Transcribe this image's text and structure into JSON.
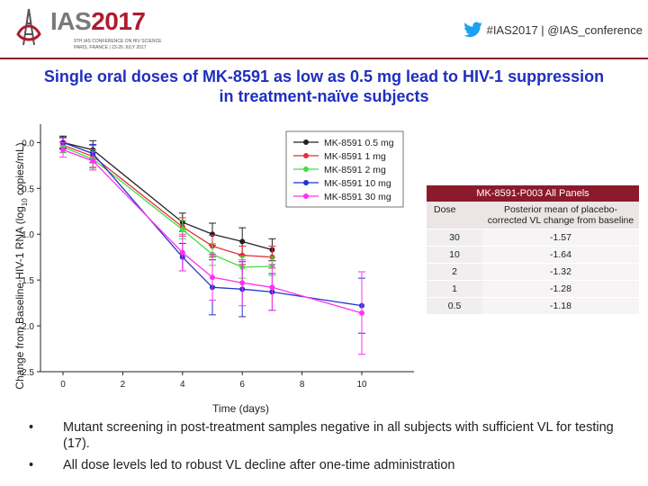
{
  "header": {
    "logo_main": "IAS",
    "logo_year": "2017",
    "logo_line1": "9TH IAS CONFERENCE ON HIV SCIENCE",
    "logo_line2": "PARIS, FRANCE | 23-26 JULY 2017",
    "hashtag": "#IAS2017 | @IAS_conference"
  },
  "slide": {
    "title": "Single oral doses of MK-8591 as low as 0.5 mg lead to HIV-1 suppression in treatment-naïve subjects"
  },
  "chart_data": {
    "type": "line",
    "xlabel": "Time (days)",
    "ylabel_main": "Change from Baseline HIV-1 RNA (log",
    "ylabel_sub": "10",
    "ylabel_end": " copies/mL)",
    "xlim": [
      0,
      10
    ],
    "ylim": [
      -2.5,
      0.2
    ],
    "xticks": [
      0,
      2,
      4,
      6,
      8,
      10
    ],
    "xtick_labels": [
      "0",
      "2",
      "4",
      "6",
      "8",
      "10"
    ],
    "yticks": [
      0,
      -0.5,
      -1,
      -1.5,
      -2,
      -2.5
    ],
    "ytick_labels": [
      "0.0",
      "-0.5",
      "-1.0",
      "-1.5",
      "-2.0",
      "-2.5"
    ],
    "grid": false,
    "legend_position": "top-right",
    "series": [
      {
        "name": "MK-8591 0.5 mg",
        "color": "#222222",
        "x": [
          0,
          1,
          4,
          5,
          6,
          7
        ],
        "y": [
          0.0,
          -0.08,
          -0.87,
          -1.0,
          -1.08,
          -1.17
        ],
        "err": [
          0.07,
          0.1,
          0.1,
          0.12,
          0.15,
          0.12
        ]
      },
      {
        "name": "MK-8591 1 mg",
        "color": "#e0303a",
        "x": [
          0,
          1,
          4,
          5,
          6,
          7
        ],
        "y": [
          -0.03,
          -0.15,
          -0.92,
          -1.13,
          -1.23,
          -1.25
        ],
        "err": [
          0.08,
          0.12,
          0.1,
          0.12,
          0.1,
          0.12
        ]
      },
      {
        "name": "MK-8591 2 mg",
        "color": "#44dd44",
        "x": [
          0,
          1,
          4,
          5,
          6,
          7
        ],
        "y": [
          -0.05,
          -0.18,
          -0.95,
          -1.22,
          -1.36,
          -1.35
        ],
        "err": [
          0.06,
          0.1,
          0.1,
          0.12,
          0.12,
          0.1
        ]
      },
      {
        "name": "MK-8591 10 mg",
        "color": "#2233cc",
        "x": [
          0,
          1,
          4,
          5,
          6,
          7,
          10
        ],
        "y": [
          0.0,
          -0.12,
          -1.25,
          -1.58,
          -1.6,
          -1.63,
          -1.78
        ],
        "err": [
          0.06,
          0.1,
          0.15,
          0.3,
          0.3,
          0.2,
          0.3
        ]
      },
      {
        "name": "MK-8591 30 mg",
        "color": "#ff33ee",
        "x": [
          0,
          1,
          4,
          5,
          6,
          7,
          10
        ],
        "y": [
          -0.08,
          -0.2,
          -1.2,
          -1.47,
          -1.53,
          -1.58,
          -1.86
        ],
        "err": [
          0.08,
          0.1,
          0.2,
          0.25,
          0.25,
          0.25,
          0.45
        ]
      }
    ]
  },
  "table": {
    "caption": "MK-8591-P003 All Panels",
    "headers": [
      "Dose",
      "Posterior mean of placebo-corrected VL change from baseline"
    ],
    "rows": [
      [
        "30",
        "-1.57"
      ],
      [
        "10",
        "-1.64"
      ],
      [
        "2",
        "-1.32"
      ],
      [
        "1",
        "-1.28"
      ],
      [
        "0.5",
        "-1.18"
      ]
    ]
  },
  "bullets": [
    {
      "marker": "•",
      "text": "Mutant screening in post-treatment samples negative in all subjects with sufficient VL for testing (17)."
    },
    {
      "marker": "•",
      "text": "All dose levels led to robust VL decline after one-time administration"
    }
  ],
  "colors": {
    "brand": "#b01c2e",
    "divider": "#8b1a2b",
    "title": "#1f2fbf",
    "twitter": "#1da1f2"
  }
}
